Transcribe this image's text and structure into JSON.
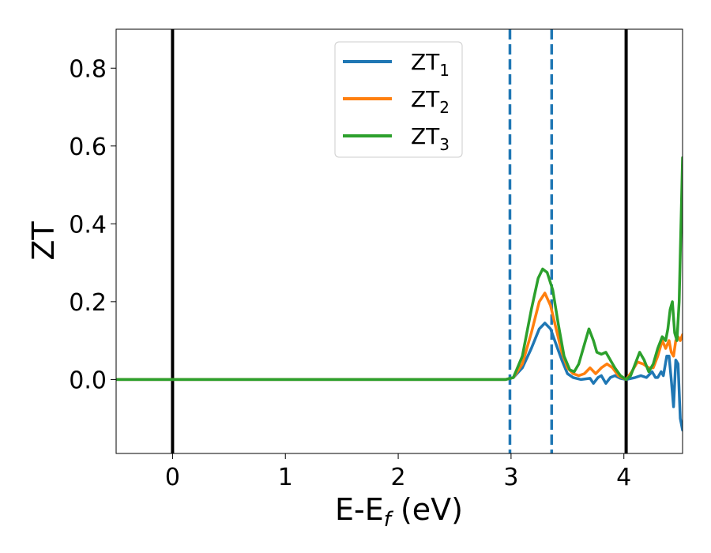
{
  "chart_data": {
    "type": "line",
    "xlabel": "E-E",
    "xlabel_sub": "f",
    "xlabel_unit": " (eV)",
    "ylabel": "ZT",
    "xlim": [
      -0.5,
      4.52
    ],
    "ylim": [
      -0.19,
      0.9
    ],
    "xticks": [
      0,
      1,
      2,
      3,
      4
    ],
    "xtick_labels": [
      "0",
      "1",
      "2",
      "3",
      "4"
    ],
    "yticks": [
      0.0,
      0.2,
      0.4,
      0.6,
      0.8
    ],
    "ytick_labels": [
      "0.0",
      "0.2",
      "0.4",
      "0.6",
      "0.8"
    ],
    "grid": false,
    "legend_position": "top-center",
    "vertical_lines": [
      {
        "x": 0.0,
        "style": "solid",
        "color": "#000000"
      },
      {
        "x": 4.02,
        "style": "solid",
        "color": "#000000"
      },
      {
        "x": 2.99,
        "style": "dashed",
        "color": "#1f77b4"
      },
      {
        "x": 3.36,
        "style": "dashed",
        "color": "#1f77b4"
      }
    ],
    "series": [
      {
        "name": "ZT",
        "subscript": "1",
        "color": "#1f77b4",
        "points": [
          [
            -0.5,
            0
          ],
          [
            2.95,
            0
          ],
          [
            3.02,
            0.005
          ],
          [
            3.1,
            0.03
          ],
          [
            3.18,
            0.08
          ],
          [
            3.25,
            0.13
          ],
          [
            3.3,
            0.145
          ],
          [
            3.35,
            0.13
          ],
          [
            3.4,
            0.09
          ],
          [
            3.45,
            0.05
          ],
          [
            3.5,
            0.015
          ],
          [
            3.55,
            0.005
          ],
          [
            3.62,
            0.0
          ],
          [
            3.7,
            0.003
          ],
          [
            3.73,
            -0.01
          ],
          [
            3.77,
            0.005
          ],
          [
            3.8,
            0.01
          ],
          [
            3.84,
            -0.01
          ],
          [
            3.88,
            0.005
          ],
          [
            3.92,
            0.01
          ],
          [
            3.97,
            0.003
          ],
          [
            4.02,
            0.0
          ],
          [
            4.1,
            0.005
          ],
          [
            4.15,
            0.01
          ],
          [
            4.2,
            0.005
          ],
          [
            4.25,
            0.02
          ],
          [
            4.28,
            0.005
          ],
          [
            4.3,
            0.005
          ],
          [
            4.33,
            0.02
          ],
          [
            4.35,
            0.01
          ],
          [
            4.38,
            0.06
          ],
          [
            4.4,
            0.06
          ],
          [
            4.42,
            0.0
          ],
          [
            4.44,
            -0.07
          ],
          [
            4.46,
            0.05
          ],
          [
            4.48,
            0.04
          ],
          [
            4.5,
            -0.1
          ],
          [
            4.52,
            -0.13
          ]
        ]
      },
      {
        "name": "ZT",
        "subscript": "2",
        "color": "#ff7f0e",
        "points": [
          [
            -0.5,
            0
          ],
          [
            2.95,
            0
          ],
          [
            3.02,
            0.005
          ],
          [
            3.1,
            0.04
          ],
          [
            3.18,
            0.12
          ],
          [
            3.25,
            0.2
          ],
          [
            3.3,
            0.222
          ],
          [
            3.35,
            0.19
          ],
          [
            3.4,
            0.13
          ],
          [
            3.45,
            0.07
          ],
          [
            3.5,
            0.03
          ],
          [
            3.55,
            0.015
          ],
          [
            3.6,
            0.01
          ],
          [
            3.65,
            0.015
          ],
          [
            3.7,
            0.03
          ],
          [
            3.75,
            0.015
          ],
          [
            3.8,
            0.03
          ],
          [
            3.85,
            0.04
          ],
          [
            3.9,
            0.03
          ],
          [
            3.95,
            0.01
          ],
          [
            4.02,
            0.0
          ],
          [
            4.07,
            0.02
          ],
          [
            4.12,
            0.045
          ],
          [
            4.17,
            0.04
          ],
          [
            4.22,
            0.03
          ],
          [
            4.26,
            0.03
          ],
          [
            4.3,
            0.06
          ],
          [
            4.34,
            0.1
          ],
          [
            4.37,
            0.08
          ],
          [
            4.4,
            0.1
          ],
          [
            4.42,
            0.07
          ],
          [
            4.44,
            0.06
          ],
          [
            4.46,
            0.1
          ],
          [
            4.48,
            0.11
          ],
          [
            4.5,
            0.1
          ],
          [
            4.52,
            0.115
          ]
        ]
      },
      {
        "name": "ZT",
        "subscript": "3",
        "color": "#2ca02c",
        "points": [
          [
            -0.5,
            0
          ],
          [
            2.95,
            0
          ],
          [
            3.02,
            0.005
          ],
          [
            3.1,
            0.06
          ],
          [
            3.18,
            0.18
          ],
          [
            3.24,
            0.26
          ],
          [
            3.28,
            0.284
          ],
          [
            3.32,
            0.275
          ],
          [
            3.37,
            0.23
          ],
          [
            3.42,
            0.14
          ],
          [
            3.47,
            0.06
          ],
          [
            3.52,
            0.025
          ],
          [
            3.56,
            0.02
          ],
          [
            3.6,
            0.04
          ],
          [
            3.65,
            0.09
          ],
          [
            3.69,
            0.13
          ],
          [
            3.73,
            0.1
          ],
          [
            3.76,
            0.07
          ],
          [
            3.8,
            0.065
          ],
          [
            3.84,
            0.07
          ],
          [
            3.88,
            0.05
          ],
          [
            3.92,
            0.03
          ],
          [
            3.97,
            0.01
          ],
          [
            4.02,
            0.0
          ],
          [
            4.06,
            0.01
          ],
          [
            4.1,
            0.04
          ],
          [
            4.14,
            0.07
          ],
          [
            4.18,
            0.05
          ],
          [
            4.22,
            0.02
          ],
          [
            4.26,
            0.04
          ],
          [
            4.3,
            0.08
          ],
          [
            4.34,
            0.11
          ],
          [
            4.37,
            0.1
          ],
          [
            4.39,
            0.13
          ],
          [
            4.41,
            0.18
          ],
          [
            4.43,
            0.2
          ],
          [
            4.45,
            0.12
          ],
          [
            4.47,
            0.1
          ],
          [
            4.49,
            0.2
          ],
          [
            4.51,
            0.45
          ],
          [
            4.52,
            0.57
          ]
        ]
      }
    ]
  }
}
